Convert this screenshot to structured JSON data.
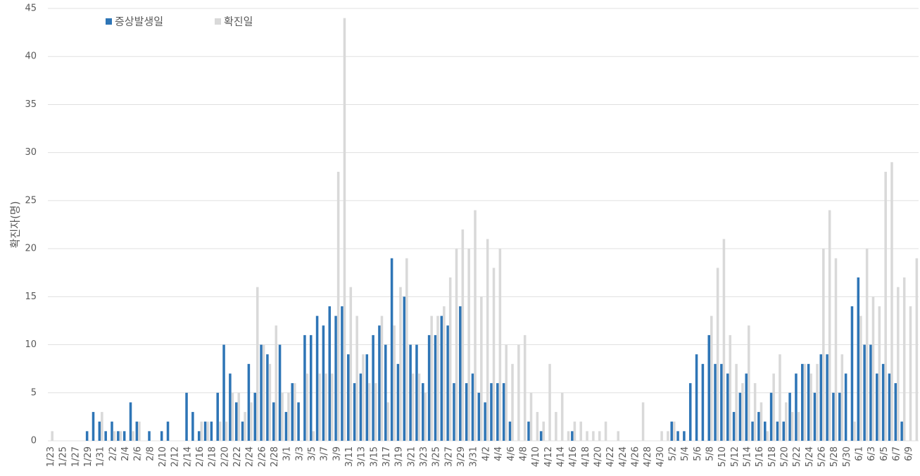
{
  "chart_data": {
    "type": "bar",
    "y_label": "확진자(명)",
    "categories": [
      "1/23",
      null,
      "1/25",
      null,
      "1/27",
      null,
      "1/29",
      null,
      "1/31",
      null,
      "2/2",
      null,
      "2/4",
      null,
      "2/6",
      null,
      "2/8",
      null,
      "2/10",
      null,
      "2/12",
      null,
      "2/14",
      null,
      "2/16",
      null,
      "2/18",
      null,
      "2/20",
      null,
      "2/22",
      null,
      "2/24",
      null,
      "2/26",
      null,
      "2/28",
      null,
      "3/1",
      null,
      "3/3",
      null,
      "3/5",
      null,
      "3/7",
      null,
      "3/9",
      null,
      "3/11",
      null,
      "3/13",
      null,
      "3/15",
      null,
      "3/17",
      null,
      "3/19",
      null,
      "3/21",
      null,
      "3/23",
      null,
      "3/25",
      null,
      "3/27",
      null,
      "3/29",
      null,
      "3/31",
      null,
      "4/2",
      null,
      "4/4",
      null,
      "4/6",
      null,
      "4/8",
      null,
      "4/10",
      null,
      "4/12",
      null,
      "4/14",
      null,
      "4/16",
      null,
      "4/18",
      null,
      "4/20",
      null,
      "4/22",
      null,
      "4/24",
      null,
      "4/26",
      null,
      "4/28",
      null,
      "4/30",
      null,
      "5/2",
      null,
      "5/4",
      null,
      "5/6",
      null,
      "5/8",
      null,
      "5/10",
      null,
      "5/12",
      null,
      "5/14",
      null,
      "5/16",
      null,
      "5/18",
      null,
      "5/20",
      null,
      "5/22",
      null,
      "5/24",
      null,
      "5/26",
      null,
      "5/28",
      null,
      "5/30",
      null,
      "6/1",
      null,
      "6/3",
      null,
      "6/5",
      null,
      "6/7",
      null,
      "6/9",
      null
    ],
    "series": [
      {
        "name": "증상발생일",
        "color": "#2e75b6",
        "values": [
          0,
          0,
          0,
          0,
          0,
          0,
          1,
          3,
          2,
          1,
          2,
          1,
          1,
          4,
          2,
          0,
          1,
          0,
          1,
          2,
          0,
          0,
          5,
          3,
          1,
          2,
          2,
          5,
          10,
          7,
          4,
          2,
          8,
          5,
          10,
          9,
          4,
          10,
          3,
          6,
          4,
          11,
          11,
          13,
          12,
          14,
          13,
          14,
          9,
          6,
          7,
          9,
          11,
          12,
          10,
          19,
          8,
          15,
          10,
          10,
          6,
          11,
          11,
          13,
          12,
          6,
          14,
          6,
          7,
          5,
          4,
          6,
          6,
          6,
          2,
          0,
          0,
          2,
          0,
          1,
          0,
          0,
          0,
          0,
          1,
          0,
          0,
          0,
          0,
          0,
          0,
          0,
          0,
          0,
          0,
          0,
          0,
          0,
          0,
          0,
          2,
          1,
          1,
          6,
          9,
          8,
          11,
          8,
          8,
          7,
          3,
          5,
          7,
          2,
          3,
          2,
          5,
          2,
          2,
          5,
          7,
          8,
          8,
          5,
          9,
          9,
          5,
          5,
          7,
          14,
          17,
          10,
          10,
          7,
          8,
          7,
          6,
          2,
          0,
          0
        ]
      },
      {
        "name": "확진일",
        "color": "#d9d9d9",
        "values": [
          1,
          0,
          0,
          0,
          0,
          0,
          0,
          0,
          3,
          0,
          1,
          1,
          0,
          1,
          2,
          0,
          0,
          0,
          0,
          0,
          0,
          0,
          0,
          0,
          2,
          2,
          0,
          2,
          2,
          5,
          5,
          3,
          4,
          16,
          10,
          8,
          12,
          5,
          5,
          6,
          0,
          7,
          1,
          7,
          7,
          7,
          28,
          44,
          16,
          13,
          9,
          6,
          6,
          13,
          4,
          12,
          16,
          19,
          7,
          7,
          5,
          13,
          13,
          14,
          17,
          20,
          22,
          20,
          24,
          15,
          21,
          18,
          20,
          10,
          8,
          10,
          11,
          5,
          3,
          2,
          8,
          3,
          5,
          1,
          2,
          2,
          1,
          1,
          1,
          2,
          0,
          1,
          0,
          0,
          0,
          4,
          0,
          0,
          1,
          1,
          2,
          0,
          0,
          0,
          0,
          0,
          13,
          18,
          21,
          11,
          8,
          6,
          12,
          6,
          4,
          1,
          7,
          9,
          4,
          3,
          3,
          8,
          7,
          8,
          20,
          24,
          19,
          9,
          0,
          2,
          13,
          20,
          15,
          14,
          28,
          29,
          16,
          17,
          14,
          19
        ]
      }
    ],
    "ylim": [
      0,
      45
    ],
    "yticks": [
      0,
      5,
      10,
      15,
      20,
      25,
      30,
      35,
      40,
      45
    ],
    "grid": true,
    "legend": "top-left"
  }
}
